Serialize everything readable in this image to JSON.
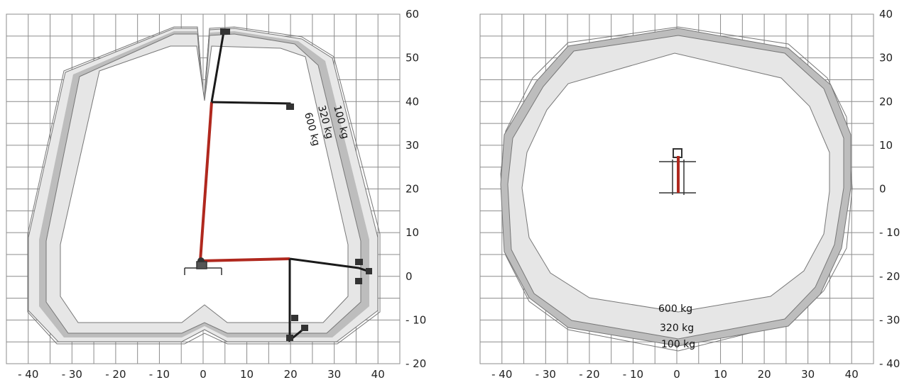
{
  "chart_data": [
    {
      "type": "diagram",
      "view": "side-working-envelope",
      "x_ticks": [
        -40,
        -30,
        -20,
        -10,
        0,
        10,
        20,
        30,
        40
      ],
      "y_ticks": [
        60,
        50,
        40,
        30,
        20,
        10,
        0,
        -10,
        -20
      ],
      "x_tick_labels": [
        "- 40",
        "- 30",
        "- 20",
        "- 10",
        "0",
        "10",
        "20",
        "30",
        "40"
      ],
      "y_tick_labels": [
        "60",
        "50",
        "40",
        "30",
        "20",
        "10",
        "0",
        "- 10",
        "- 20"
      ],
      "xlim": [
        -45,
        45
      ],
      "ylim": [
        -20,
        60
      ],
      "grid": true,
      "load_labels": [
        "100 kg",
        "320 kg",
        "600 kg"
      ],
      "colors": {
        "boom_main": "#b0281e",
        "boom_secondary": "#1a1a1a",
        "zone_light": "#e6e6e6",
        "zone_dark": "#bdbdbd"
      }
    },
    {
      "type": "diagram",
      "view": "top-slew-envelope",
      "x_ticks": [
        -40,
        -30,
        -20,
        -10,
        0,
        10,
        20,
        30,
        40
      ],
      "y_ticks": [
        40,
        30,
        20,
        10,
        0,
        -10,
        -20,
        -30,
        -40
      ],
      "x_tick_labels": [
        "- 40",
        "- 30",
        "- 20",
        "- 10",
        "0",
        "10",
        "20",
        "30",
        "40"
      ],
      "y_tick_labels": [
        "40",
        "30",
        "20",
        "10",
        "0",
        "- 10",
        "- 20",
        "- 30",
        "- 40"
      ],
      "xlim": [
        -45,
        45
      ],
      "ylim": [
        -40,
        40
      ],
      "grid": true,
      "load_labels": [
        "600 kg",
        "320 kg",
        "100 kg"
      ],
      "colors": {
        "boom_main": "#b0281e",
        "zone_light": "#e6e6e6",
        "zone_dark": "#bdbdbd"
      }
    }
  ]
}
